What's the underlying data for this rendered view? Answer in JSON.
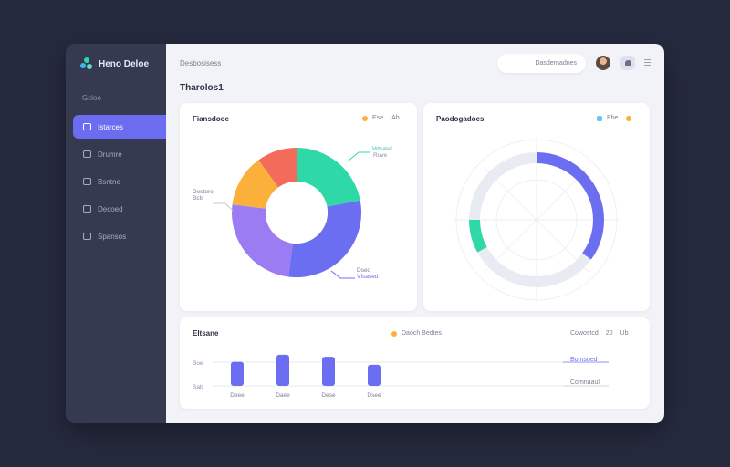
{
  "app": {
    "name": "Heno Deloe"
  },
  "sidebar": {
    "section": "Gcloo",
    "items": [
      {
        "label": "Istarces",
        "active": true
      },
      {
        "label": "Drumre",
        "active": false
      },
      {
        "label": "Bsntne",
        "active": false
      },
      {
        "label": "Decoed",
        "active": false
      },
      {
        "label": "Spansos",
        "active": false
      }
    ]
  },
  "header": {
    "breadcrumb": "Desbosisess",
    "search_placeholder": "Dasdernadnes"
  },
  "page": {
    "title": "Tharolos1"
  },
  "colors": {
    "accent": "#6c6cf1",
    "teal": "#2fd9a7",
    "orange": "#fbb03b",
    "red": "#f26b5b",
    "purple": "#9b7cf2",
    "indigo": "#6b6ef0"
  },
  "donut_card": {
    "title": "Fiansdooe",
    "legend": [
      {
        "label": "Ese",
        "color": "#fbb03b"
      },
      {
        "label": "Ab",
        "color": "#a7abc0"
      }
    ],
    "annotations": {
      "top_right": [
        "Vrtsasd",
        "Ruve"
      ],
      "left": [
        "Destore",
        "Bcls"
      ],
      "bottom_right": [
        "Dseo",
        "Vfsased"
      ]
    },
    "chart_data": {
      "type": "pie",
      "donut": true,
      "segments": [
        {
          "color": "#2fd9a7",
          "value": 22
        },
        {
          "color": "#6b6ef0",
          "value": 30
        },
        {
          "color": "#9b7cf2",
          "value": 25
        },
        {
          "color": "#fbb03b",
          "value": 13
        },
        {
          "color": "#f26b5b",
          "value": 10
        }
      ]
    }
  },
  "radial_card": {
    "title": "Paodogadoes",
    "legend": [
      {
        "label": "Ebe",
        "color": "#62c6f5"
      },
      {
        "label": "",
        "color": "#fbb03b"
      }
    ],
    "chart_data": {
      "type": "radial",
      "segments": [
        {
          "color": "#6b6ef0",
          "value": 0.35
        },
        {
          "color": "#2fd9a7",
          "value": 0.08
        }
      ]
    }
  },
  "bar_card": {
    "title": "Eltsane",
    "legend_center": {
      "label": "Daoch Bedtes",
      "color": "#fbb03b"
    },
    "legend_right": [
      "Cowostcd",
      "20",
      "Ub"
    ],
    "refs": [
      "Bomsoed",
      "Comnaaul"
    ],
    "chart_data": {
      "type": "bar",
      "categories": [
        "Deee",
        "Daee",
        "Dese",
        "Dsee"
      ],
      "values": [
        24,
        31,
        29,
        21
      ],
      "yticks": [
        "Boe",
        "Sab"
      ]
    }
  }
}
